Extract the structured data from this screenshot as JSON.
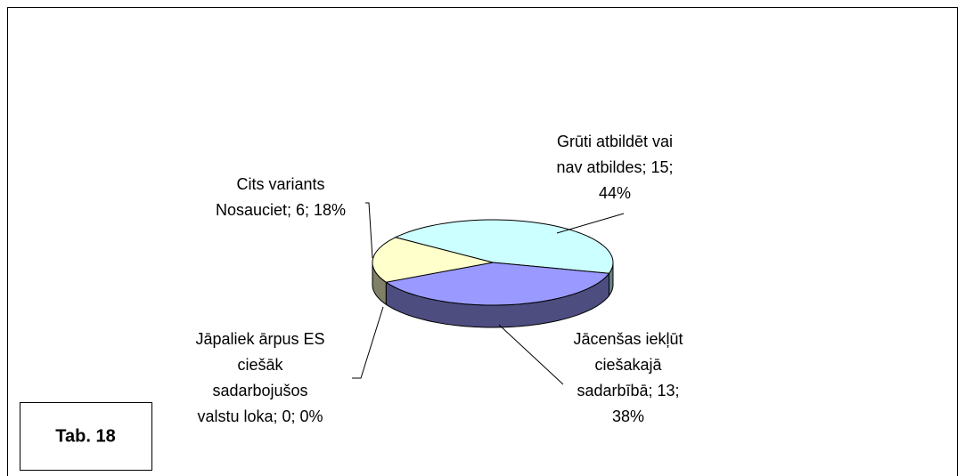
{
  "chart_data": {
    "type": "pie",
    "note": "Tab. 18",
    "categories": [
      "Grūti atbildēt vai nav atbildes",
      "Jācenšas iekļūt ciešakajā sadarbībā",
      "Jāpaliek ārpus ES ciešāk sadarbojušos valstu loka",
      "Cits variants Nosauciet"
    ],
    "values": [
      15,
      13,
      0,
      6
    ],
    "label_lines": [
      [
        "Grūti atbildēt vai",
        "nav atbildes; 15;",
        "44%"
      ],
      [
        "Jācenšas iekļūt",
        "ciešakajā",
        "sadarbībā; 13;",
        "38%"
      ],
      [
        "Jāpaliek ārpus ES",
        "ciešāk",
        "sadarbojušos",
        "valstu loka; 0; 0%"
      ],
      [
        "Cits variants",
        "Nosauciet; 6; 18%"
      ]
    ],
    "colors": [
      "#ccffff",
      "#9999ff",
      "#993366",
      "#ffffcc"
    ],
    "side_colors": [
      "#668080",
      "#4d4d80",
      "#4d1a33",
      "#808066"
    ]
  }
}
